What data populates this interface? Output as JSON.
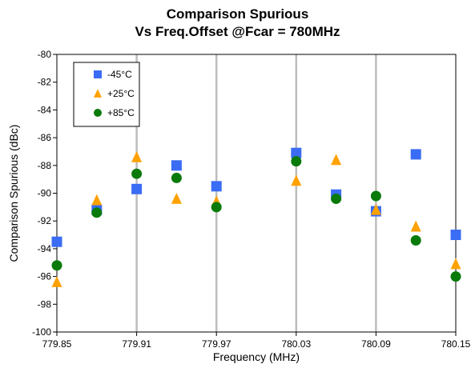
{
  "chart_data": {
    "type": "scatter",
    "title": "Comparison Spurious",
    "subtitle": "Vs Freq.Offset @Fcar = 780MHz",
    "xlabel": "Frequency (MHz)",
    "ylabel": "Comparison Spurious  (dBc)",
    "xlim": [
      779.85,
      780.15
    ],
    "ylim": [
      -100,
      -80
    ],
    "xticks": [
      779.85,
      779.91,
      779.97,
      780.03,
      780.09,
      780.15
    ],
    "xtick_labels": [
      "779.85",
      "779.91",
      "779.97",
      "780.03",
      "780.09",
      "780.15"
    ],
    "yticks": [
      -80,
      -82,
      -84,
      -86,
      -88,
      -90,
      -92,
      -94,
      -96,
      -98,
      -100
    ],
    "ytick_labels": [
      "-80",
      "-82",
      "-84",
      "-86",
      "-88",
      "-90",
      "-92",
      "-94",
      "-96",
      "-98",
      "-100"
    ],
    "grid": "vertical",
    "legend_position": "top-left",
    "series": [
      {
        "name": "-45°C",
        "marker": "square",
        "color": "#3a6cf4",
        "points": [
          [
            779.85,
            -93.5
          ],
          [
            779.88,
            -91.2
          ],
          [
            779.91,
            -89.7
          ],
          [
            779.94,
            -88.0
          ],
          [
            779.97,
            -89.5
          ],
          [
            780.03,
            -87.1
          ],
          [
            780.06,
            -90.1
          ],
          [
            780.09,
            -91.3
          ],
          [
            780.12,
            -87.2
          ],
          [
            780.15,
            -93.0
          ]
        ]
      },
      {
        "name": "+25°C",
        "marker": "triangle",
        "color": "#ffa100",
        "points": [
          [
            779.85,
            -96.4
          ],
          [
            779.88,
            -90.5
          ],
          [
            779.91,
            -87.4
          ],
          [
            779.94,
            -90.4
          ],
          [
            779.97,
            -90.6
          ],
          [
            780.03,
            -89.1
          ],
          [
            780.06,
            -87.6
          ],
          [
            780.09,
            -91.2
          ],
          [
            780.12,
            -92.4
          ],
          [
            780.15,
            -95.1
          ]
        ]
      },
      {
        "name": "+85°C",
        "marker": "circle",
        "color": "#0a7a0a",
        "points": [
          [
            779.85,
            -95.2
          ],
          [
            779.88,
            -91.4
          ],
          [
            779.91,
            -88.6
          ],
          [
            779.94,
            -88.9
          ],
          [
            779.97,
            -91.0
          ],
          [
            780.03,
            -87.7
          ],
          [
            780.06,
            -90.4
          ],
          [
            780.09,
            -90.2
          ],
          [
            780.12,
            -93.4
          ],
          [
            780.15,
            -96.0
          ]
        ]
      }
    ]
  }
}
